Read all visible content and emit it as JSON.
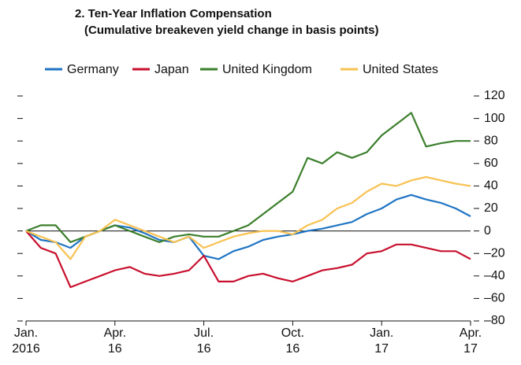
{
  "chart_data": {
    "type": "line",
    "title": "2. Ten-Year Inflation Compensation",
    "subtitle": "(Cumulative breakeven yield change in basis points)",
    "x": [
      0,
      0.5,
      1,
      1.5,
      2,
      2.5,
      3,
      3.5,
      4,
      4.5,
      5,
      5.5,
      6,
      6.5,
      7,
      7.5,
      8,
      8.5,
      9,
      9.5,
      10,
      10.5,
      11,
      11.5,
      12,
      12.5,
      13,
      13.5,
      14,
      14.5,
      15
    ],
    "xlim": [
      0,
      15
    ],
    "xticks": [
      {
        "value": 0,
        "label": "Jan.\n2016"
      },
      {
        "value": 3,
        "label": "Apr.\n16"
      },
      {
        "value": 6,
        "label": "Jul.\n16"
      },
      {
        "value": 9,
        "label": "Oct.\n16"
      },
      {
        "value": 12,
        "label": "Jan.\n17"
      },
      {
        "value": 15,
        "label": "Apr.\n17"
      }
    ],
    "ylim": [
      -80,
      120
    ],
    "yticks": [
      {
        "value": -80,
        "label": "–80"
      },
      {
        "value": -60,
        "label": "–60"
      },
      {
        "value": -40,
        "label": "–40"
      },
      {
        "value": -20,
        "label": "–20"
      },
      0,
      20,
      40,
      60,
      80,
      100,
      120
    ],
    "series": [
      {
        "name": "Germany",
        "color": "#1f74c4",
        "values": [
          0,
          -8,
          -10,
          -15,
          -5,
          0,
          5,
          3,
          -2,
          -8,
          -10,
          -5,
          -22,
          -25,
          -18,
          -14,
          -8,
          -5,
          -3,
          0,
          2,
          5,
          8,
          15,
          20,
          28,
          32,
          28,
          25,
          20,
          13
        ]
      },
      {
        "name": "Japan",
        "color": "#c8102e",
        "values": [
          0,
          -15,
          -20,
          -50,
          -45,
          -40,
          -35,
          -32,
          -38,
          -40,
          -38,
          -35,
          -22,
          -45,
          -45,
          -40,
          -38,
          -42,
          -45,
          -40,
          -35,
          -33,
          -30,
          -20,
          -18,
          -12,
          -12,
          -15,
          -18,
          -18,
          -25
        ]
      },
      {
        "name": "United Kingdom",
        "color": "#3b7f2d",
        "values": [
          0,
          5,
          5,
          -10,
          -5,
          0,
          5,
          0,
          -5,
          -10,
          -5,
          -3,
          -5,
          -5,
          0,
          5,
          15,
          25,
          35,
          65,
          60,
          70,
          65,
          70,
          85,
          95,
          105,
          75,
          78,
          80,
          80
        ]
      },
      {
        "name": "United States",
        "color": "#f8c253",
        "values": [
          0,
          -5,
          -10,
          -25,
          -5,
          0,
          10,
          5,
          0,
          -5,
          -10,
          -5,
          -15,
          -10,
          -5,
          -2,
          0,
          0,
          -3,
          5,
          10,
          20,
          25,
          35,
          42,
          40,
          45,
          48,
          45,
          42,
          40
        ]
      }
    ]
  }
}
